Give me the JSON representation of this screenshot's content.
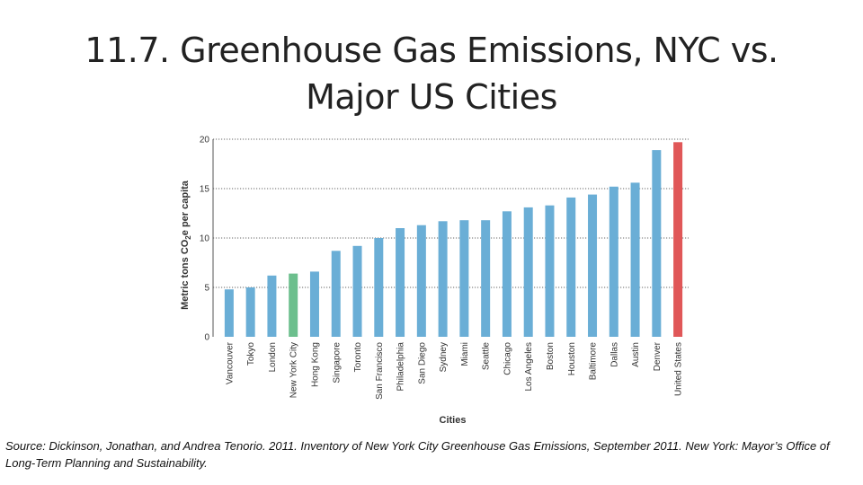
{
  "slide": {
    "title_line1": "11.7. Greenhouse Gas Emissions, NYC vs.",
    "title_line2": "Major US Cities",
    "source": "Source: Dickinson, Jonathan, and Andrea Tenorio. 2011. Inventory of New York City Greenhouse Gas Emissions, September 2011. New York: Mayor’s Office of Long-Term Planning and Sustainability."
  },
  "chart_data": {
    "type": "bar",
    "title": "",
    "xlabel": "Cities",
    "ylabel_pre": "Metric tons CO",
    "ylabel_sub": "2",
    "ylabel_post": "e per capita",
    "ylim": [
      0,
      20
    ],
    "yticks": [
      0,
      5,
      10,
      15,
      20
    ],
    "grid": "dotted horizontal at 5, 10, 15, 20",
    "categories": [
      "Vancouver",
      "Tokyo",
      "London",
      "New York City",
      "Hong Kong",
      "Singapore",
      "Toronto",
      "San Francisco",
      "Philadelphia",
      "San Diego",
      "Sydney",
      "Miami",
      "Seattle",
      "Chicago",
      "Los Angeles",
      "Boston",
      "Houston",
      "Baltimore",
      "Dallas",
      "Austin",
      "Denver",
      "United States"
    ],
    "values": [
      4.8,
      5.0,
      6.2,
      6.4,
      6.6,
      8.7,
      9.2,
      10.0,
      11.0,
      11.3,
      11.7,
      11.8,
      11.8,
      12.7,
      13.1,
      13.3,
      14.1,
      14.4,
      15.2,
      15.6,
      18.9,
      19.7
    ],
    "colors": {
      "default": "#6aaed6",
      "New York City": "#6cbf8d",
      "United States": "#e05758",
      "axis": "#555555",
      "text": "#333333"
    }
  }
}
